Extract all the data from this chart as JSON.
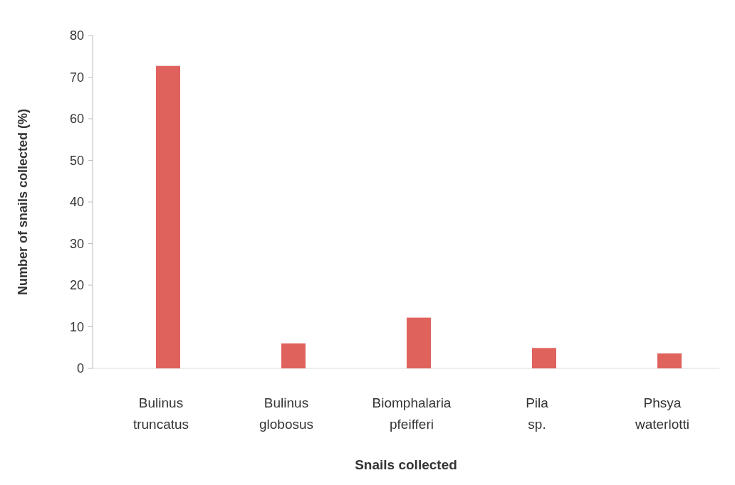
{
  "chart_data": {
    "type": "bar",
    "xlabel": "Snails collected",
    "ylabel": "Number of snails collected (%)",
    "categories": [
      "Bulinus truncatus",
      "Bulinus globosus",
      "Biomphalaria pfeifferi",
      "Pila sp.",
      "Phsya waterlotti"
    ],
    "values": [
      72.7,
      6.0,
      12.2,
      4.9,
      3.6
    ],
    "color": "#e0625d",
    "ylim": [
      0,
      80
    ],
    "yticks": [
      0,
      10,
      20,
      30,
      40,
      50,
      60,
      70,
      80
    ],
    "grid": false
  }
}
